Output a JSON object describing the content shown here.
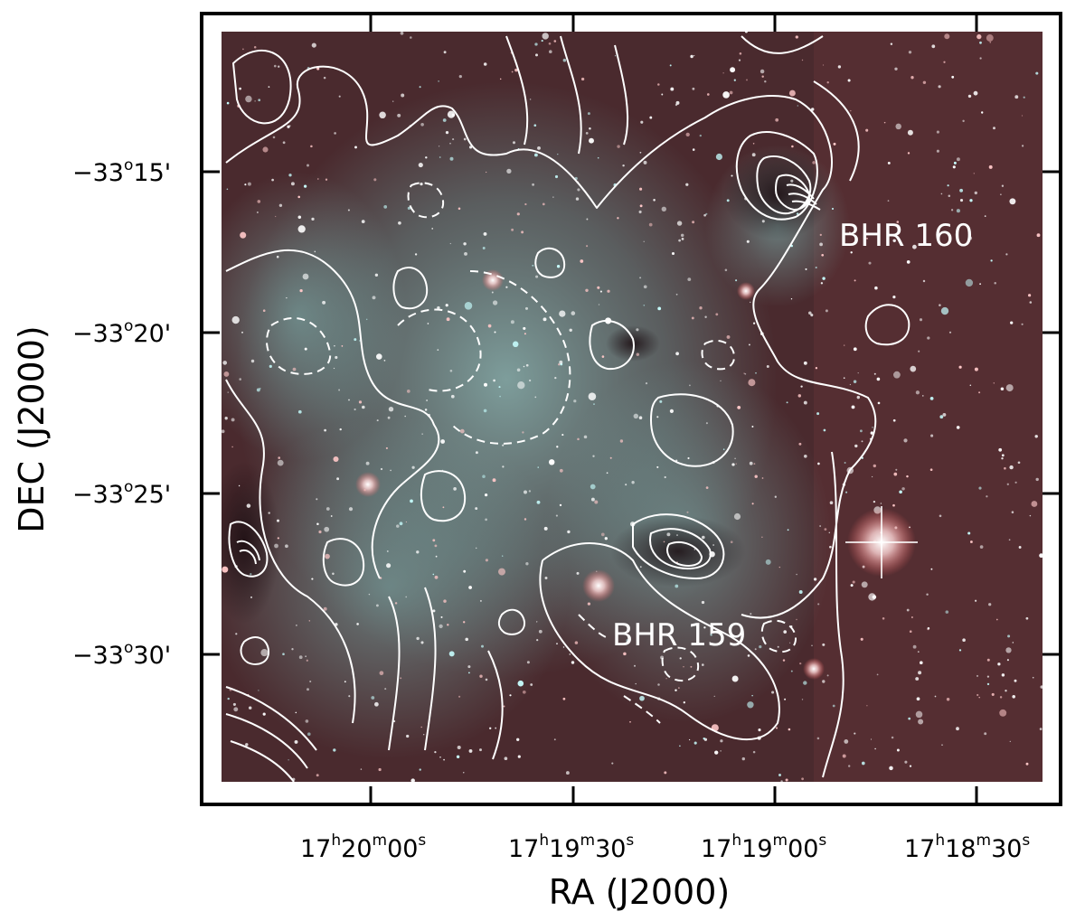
{
  "axes": {
    "xlabel": "RA  (J2000)",
    "ylabel": "DEC (J2000)",
    "dec_ticks": [
      {
        "deg": "−33",
        "deg_sup": "o",
        "arcmin": "15'"
      },
      {
        "deg": "−33",
        "deg_sup": "o",
        "arcmin": "20'"
      },
      {
        "deg": "−33",
        "deg_sup": "o",
        "arcmin": "25'"
      },
      {
        "deg": "−33",
        "deg_sup": "o",
        "arcmin": "30'"
      }
    ],
    "ra_ticks": [
      {
        "h": "17",
        "h_sup": "h",
        "m": "20",
        "m_sup": "m",
        "s": "00",
        "s_sup": "s"
      },
      {
        "h": "17",
        "h_sup": "h",
        "m": "19",
        "m_sup": "m",
        "s": "30",
        "s_sup": "s"
      },
      {
        "h": "17",
        "h_sup": "h",
        "m": "19",
        "m_sup": "m",
        "s": "00",
        "s_sup": "s"
      },
      {
        "h": "17",
        "h_sup": "h",
        "m": "18",
        "m_sup": "m",
        "s": "30",
        "s_sup": "s"
      }
    ]
  },
  "annotations": {
    "bhr160": "BHR 160",
    "bhr159": "BHR 159"
  },
  "colors": {
    "sky": "#4a2a2e",
    "nebula": "#6fa8a6",
    "contour": "#ffffff",
    "frame": "#000000"
  }
}
